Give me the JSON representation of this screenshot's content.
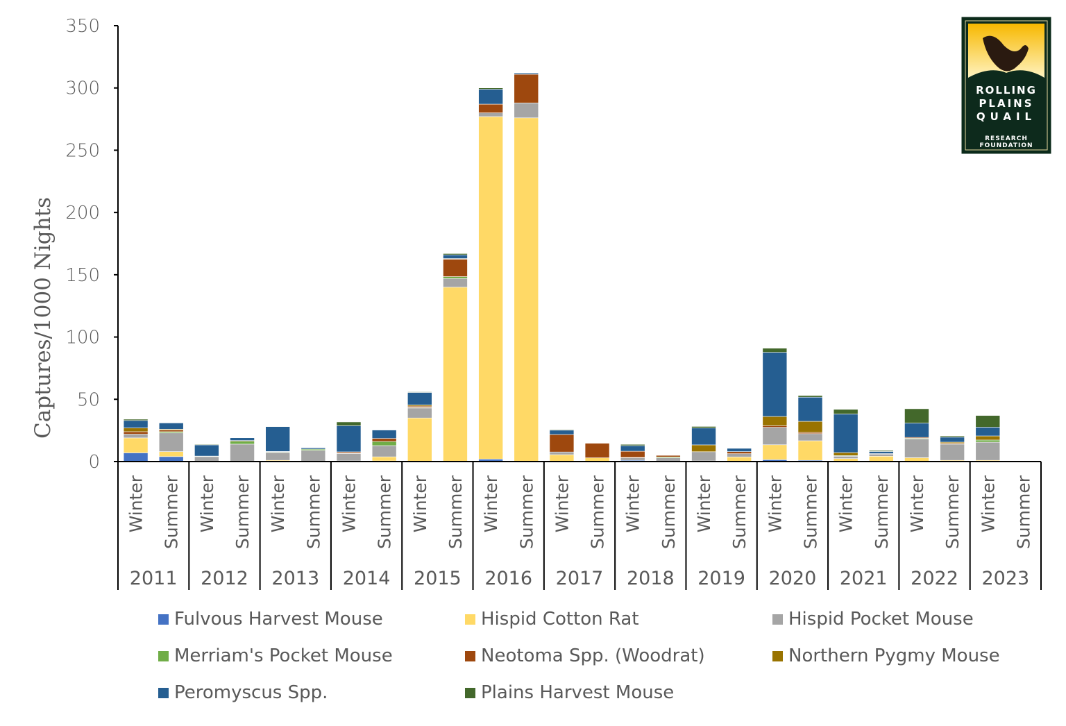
{
  "chart_data": {
    "type": "bar",
    "stacked": true,
    "title": "",
    "xlabel": "",
    "ylabel": "Captures/1000 Nights",
    "ylim": [
      0,
      350
    ],
    "yticks": [
      0,
      50,
      100,
      150,
      200,
      250,
      300,
      350
    ],
    "years": [
      "2011",
      "2012",
      "2013",
      "2014",
      "2015",
      "2016",
      "2017",
      "2018",
      "2019",
      "2020",
      "2021",
      "2022",
      "2023"
    ],
    "seasons": [
      "Winter",
      "Summer"
    ],
    "legend_position": "bottom",
    "series": [
      {
        "name": "Fulvous Harvest Mouse",
        "color": "#4472C4",
        "values": [
          7,
          4,
          0,
          0,
          0,
          0,
          0,
          0.5,
          0,
          0,
          2,
          0,
          0,
          0,
          1,
          0,
          0,
          0,
          1.5,
          1,
          0,
          0,
          0,
          0,
          0,
          0
        ]
      },
      {
        "name": "Hispid Cotton Rat",
        "color": "#FFD966",
        "values": [
          12,
          4,
          0,
          0,
          1,
          0,
          0.5,
          3.3,
          35,
          140,
          275,
          276,
          5.5,
          3,
          0,
          0,
          0.5,
          3.7,
          12,
          15.7,
          2.4,
          4.3,
          3.1,
          1,
          1,
          0
        ]
      },
      {
        "name": "Hispid Pocket Mouse",
        "color": "#A5A5A5",
        "values": [
          3,
          15,
          4,
          14,
          6.3,
          9,
          6,
          9,
          8,
          7,
          3,
          12,
          2.2,
          0,
          2,
          3,
          7.4,
          2.6,
          14,
          5.7,
          1.9,
          1.7,
          15,
          13,
          14.6,
          0
        ]
      },
      {
        "name": "Merriam's Pocket Mouse",
        "color": "#70AD47",
        "values": [
          0,
          1,
          0.4,
          2.4,
          0.5,
          1,
          0.3,
          3.3,
          0.5,
          1.5,
          0,
          0,
          0,
          0,
          0.3,
          0.7,
          0,
          0,
          0,
          0,
          0.5,
          0,
          0.6,
          0,
          1.7,
          0
        ]
      },
      {
        "name": "Neotoma Spp. (Woodrat)",
        "color": "#9E480E",
        "values": [
          2,
          1.3,
          0,
          0.5,
          0.3,
          0,
          1,
          2.5,
          1,
          14,
          7,
          23,
          14,
          11.7,
          5,
          1.3,
          0,
          1.7,
          1.3,
          1,
          0,
          0.4,
          0.7,
          0.6,
          0,
          0
        ]
      },
      {
        "name": "Northern Pygmy Mouse",
        "color": "#997300",
        "values": [
          3,
          0.7,
          0,
          0,
          0,
          0,
          0,
          0,
          1,
          0.5,
          0,
          0,
          0,
          0,
          0,
          0,
          5.5,
          0,
          7.4,
          8.9,
          2.4,
          0,
          0,
          1,
          3.3,
          0
        ]
      },
      {
        "name": "Peromyscus Spp.",
        "color": "#255E91",
        "values": [
          6,
          5,
          9,
          2.2,
          20,
          1,
          21,
          6.7,
          10,
          3,
          12,
          1,
          3.5,
          0,
          4.5,
          0,
          13.5,
          2.6,
          51.5,
          19.4,
          31,
          1.7,
          11.5,
          4,
          7,
          0
        ]
      },
      {
        "name": "Plains Harvest Mouse",
        "color": "#43682B",
        "values": [
          1,
          0,
          0.5,
          0,
          0.3,
          0,
          3,
          0,
          0.5,
          1,
          1,
          0,
          0.5,
          0,
          1,
          0.3,
          1.3,
          0,
          3.3,
          1.3,
          3.7,
          0.8,
          11.5,
          1,
          9.4,
          0
        ]
      }
    ]
  },
  "logo": {
    "line1": "ROLLING",
    "line2": "PLAINS",
    "line3": "QUAIL",
    "line4": "RESEARCH",
    "line5": "FOUNDATION"
  }
}
